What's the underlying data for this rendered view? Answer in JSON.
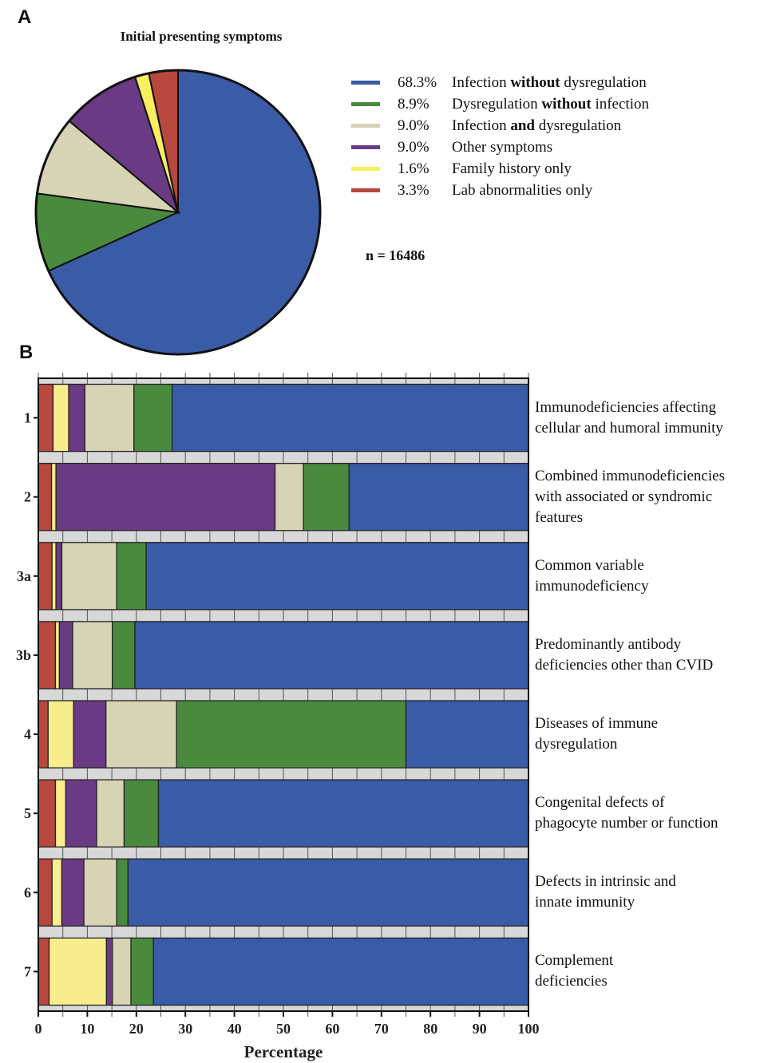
{
  "panel_a": {
    "letter": "A",
    "chart_data": {
      "type": "pie",
      "title": "Initial presenting symptoms",
      "slices": [
        {
          "pct_label": "68.3%",
          "value": 68.3,
          "pre": "Infection ",
          "bold": "without",
          "post": " dysregulation",
          "color": "#3a5ba6"
        },
        {
          "pct_label": "8.9%",
          "value": 8.9,
          "pre": "Dysregulation ",
          "bold": "without",
          "post": " infection",
          "color": "#4a8a3e"
        },
        {
          "pct_label": "9.0%",
          "value": 9.0,
          "pre": "Infection ",
          "bold": "and",
          "post": " dysregulation",
          "color": "#d6d4b4"
        },
        {
          "pct_label": "9.0%",
          "value": 9.0,
          "pre": "Other symptoms",
          "bold": "",
          "post": "",
          "color": "#6b3a84"
        },
        {
          "pct_label": "1.6%",
          "value": 1.6,
          "pre": "Family history only",
          "bold": "",
          "post": "",
          "color": "#f8ee5e"
        },
        {
          "pct_label": "3.3%",
          "value": 3.3,
          "pre": "Lab abnormalities only",
          "bold": "",
          "post": "",
          "color": "#b8473d"
        }
      ],
      "legend_position": "right",
      "n_label": "n = 16486"
    }
  },
  "panel_b": {
    "letter": "B",
    "chart_data": {
      "type": "bar",
      "orientation": "horizontal",
      "stacked": true,
      "xlabel": "Percentage",
      "xlim": [
        0,
        100
      ],
      "xticks": [
        "0",
        "10",
        "20",
        "30",
        "40",
        "50",
        "60",
        "70",
        "80",
        "90",
        "100"
      ],
      "series_colors": [
        "#b8473d",
        "#f8ee8e",
        "#6b3a84",
        "#d6d4b4",
        "#4a8a3e",
        "#3a5ba6"
      ],
      "categories": [
        {
          "label": "1",
          "desc": [
            "Immunodeficiencies affecting",
            "cellular and humoral immunity"
          ],
          "values": [
            3.0,
            3.2,
            3.3,
            10.0,
            7.8,
            72.7
          ]
        },
        {
          "label": "2",
          "desc": [
            "Combined immunodeficiencies",
            "with associated or syndromic",
            "features"
          ],
          "values": [
            2.7,
            0.9,
            44.7,
            5.8,
            9.3,
            36.6
          ]
        },
        {
          "label": "3a",
          "desc": [
            "Common variable",
            "immunodeficiency"
          ],
          "values": [
            2.8,
            0.8,
            1.2,
            11.2,
            6.0,
            78.0
          ]
        },
        {
          "label": "3b",
          "desc": [
            "Predominantly antibody",
            "deficiencies other than CVID"
          ],
          "values": [
            3.5,
            0.8,
            2.7,
            8.1,
            4.6,
            80.3
          ]
        },
        {
          "label": "4",
          "desc": [
            "Diseases of immune",
            "dysregulation"
          ],
          "values": [
            2.0,
            5.2,
            6.6,
            14.4,
            46.8,
            25.0
          ]
        },
        {
          "label": "5",
          "desc": [
            "Congenital defects of",
            "phagocyte number or function"
          ],
          "values": [
            3.5,
            2.1,
            6.3,
            5.6,
            7.0,
            75.5
          ]
        },
        {
          "label": "6",
          "desc": [
            "Defects in intrinsic and",
            "innate immunity"
          ],
          "values": [
            2.8,
            2.0,
            4.5,
            6.7,
            2.3,
            81.7
          ]
        },
        {
          "label": "7",
          "desc": [
            "Complement",
            "deficiencies"
          ],
          "values": [
            2.2,
            11.7,
            1.2,
            3.8,
            4.6,
            76.5
          ]
        }
      ]
    }
  }
}
